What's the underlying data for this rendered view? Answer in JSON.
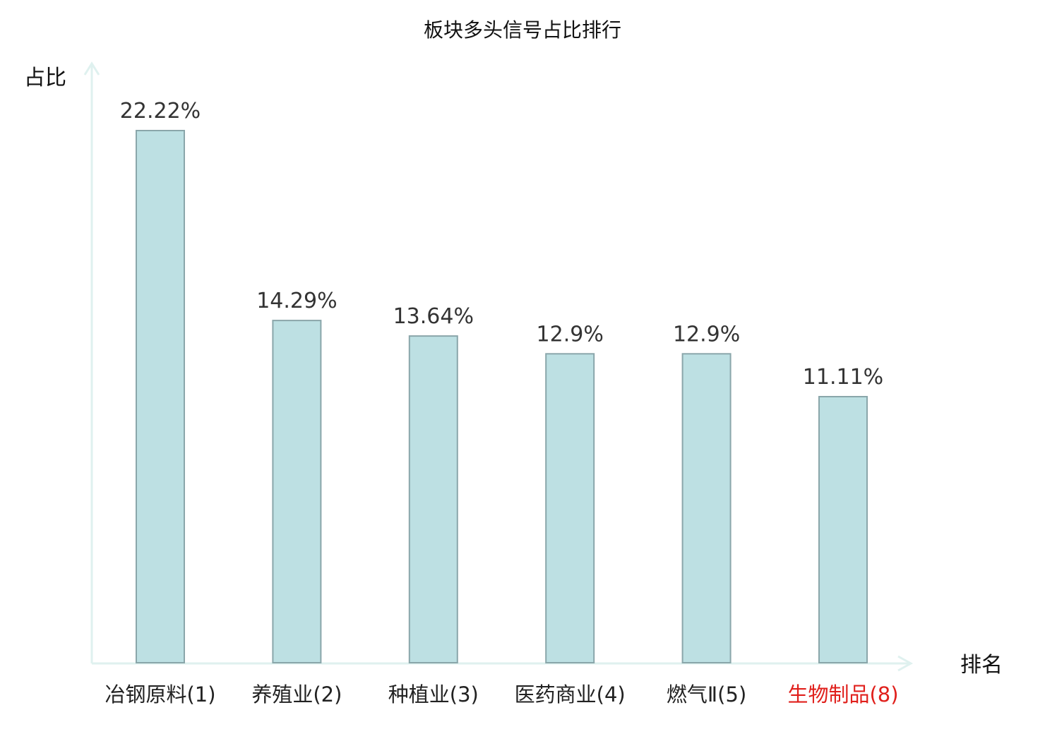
{
  "chart_data": {
    "type": "bar",
    "title": "板块多头信号占比排行",
    "ylabel": "占比",
    "xlabel": "排名",
    "categories": [
      "冶钢原料(1)",
      "养殖业(2)",
      "种植业(3)",
      "医药商业(4)",
      "燃气Ⅱ(5)",
      "生物制品(8)"
    ],
    "values": [
      22.22,
      14.29,
      13.64,
      12.9,
      12.9,
      11.11
    ],
    "value_labels": [
      "22.22%",
      "14.29%",
      "13.64%",
      "12.9%",
      "12.9%",
      "11.11%"
    ],
    "ylim": [
      0,
      25
    ],
    "grid": false,
    "legend": "none",
    "highlight_index": 5
  },
  "colors": {
    "bar_fill": "#bde0e3",
    "bar_stroke": "#8aa6aa",
    "axis": "#dff1ef",
    "highlight_label": "#e0201c",
    "normal_label": "#222222"
  }
}
